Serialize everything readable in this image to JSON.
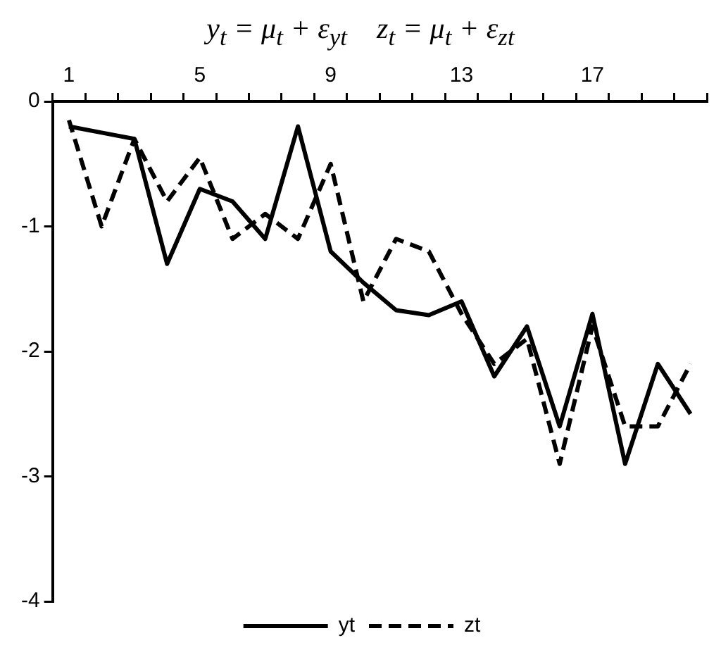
{
  "chart_data": {
    "type": "line",
    "title": "y$_{t}$ = μ$_{t}$ + ε$_{yt}$    z$_{t}$ = μ$_{t}$ + ε$_{zt}$",
    "categories": [
      "1",
      null,
      null,
      null,
      "5",
      null,
      null,
      null,
      "9",
      null,
      null,
      null,
      "13",
      null,
      null,
      null,
      "17",
      null,
      null,
      null
    ],
    "series": [
      {
        "name": "yt",
        "color": "#000000",
        "line_style": "solid",
        "values": [
          -0.2,
          -0.25,
          -0.3,
          -1.3,
          -0.7,
          -0.8,
          -1.1,
          -0.2,
          -1.2,
          -1.45,
          -1.67,
          -1.71,
          -1.6,
          -2.2,
          -1.8,
          -2.6,
          -1.7,
          -2.9,
          -2.1,
          -2.5
        ]
      },
      {
        "name": "zt",
        "color": "#000000",
        "line_style": "dashed",
        "values": [
          -0.15,
          -1.0,
          -0.3,
          -0.8,
          -0.45,
          -1.1,
          -0.9,
          -1.1,
          -0.5,
          -1.6,
          -1.1,
          -1.2,
          -1.7,
          -2.1,
          -1.9,
          -2.9,
          -1.8,
          -2.6,
          -2.6,
          -2.1
        ]
      }
    ],
    "ylim": [
      -4,
      0
    ],
    "yticks": [
      -4,
      -3,
      -2,
      -1,
      0
    ],
    "grid": false,
    "legend": "bottom",
    "marker": "none"
  }
}
